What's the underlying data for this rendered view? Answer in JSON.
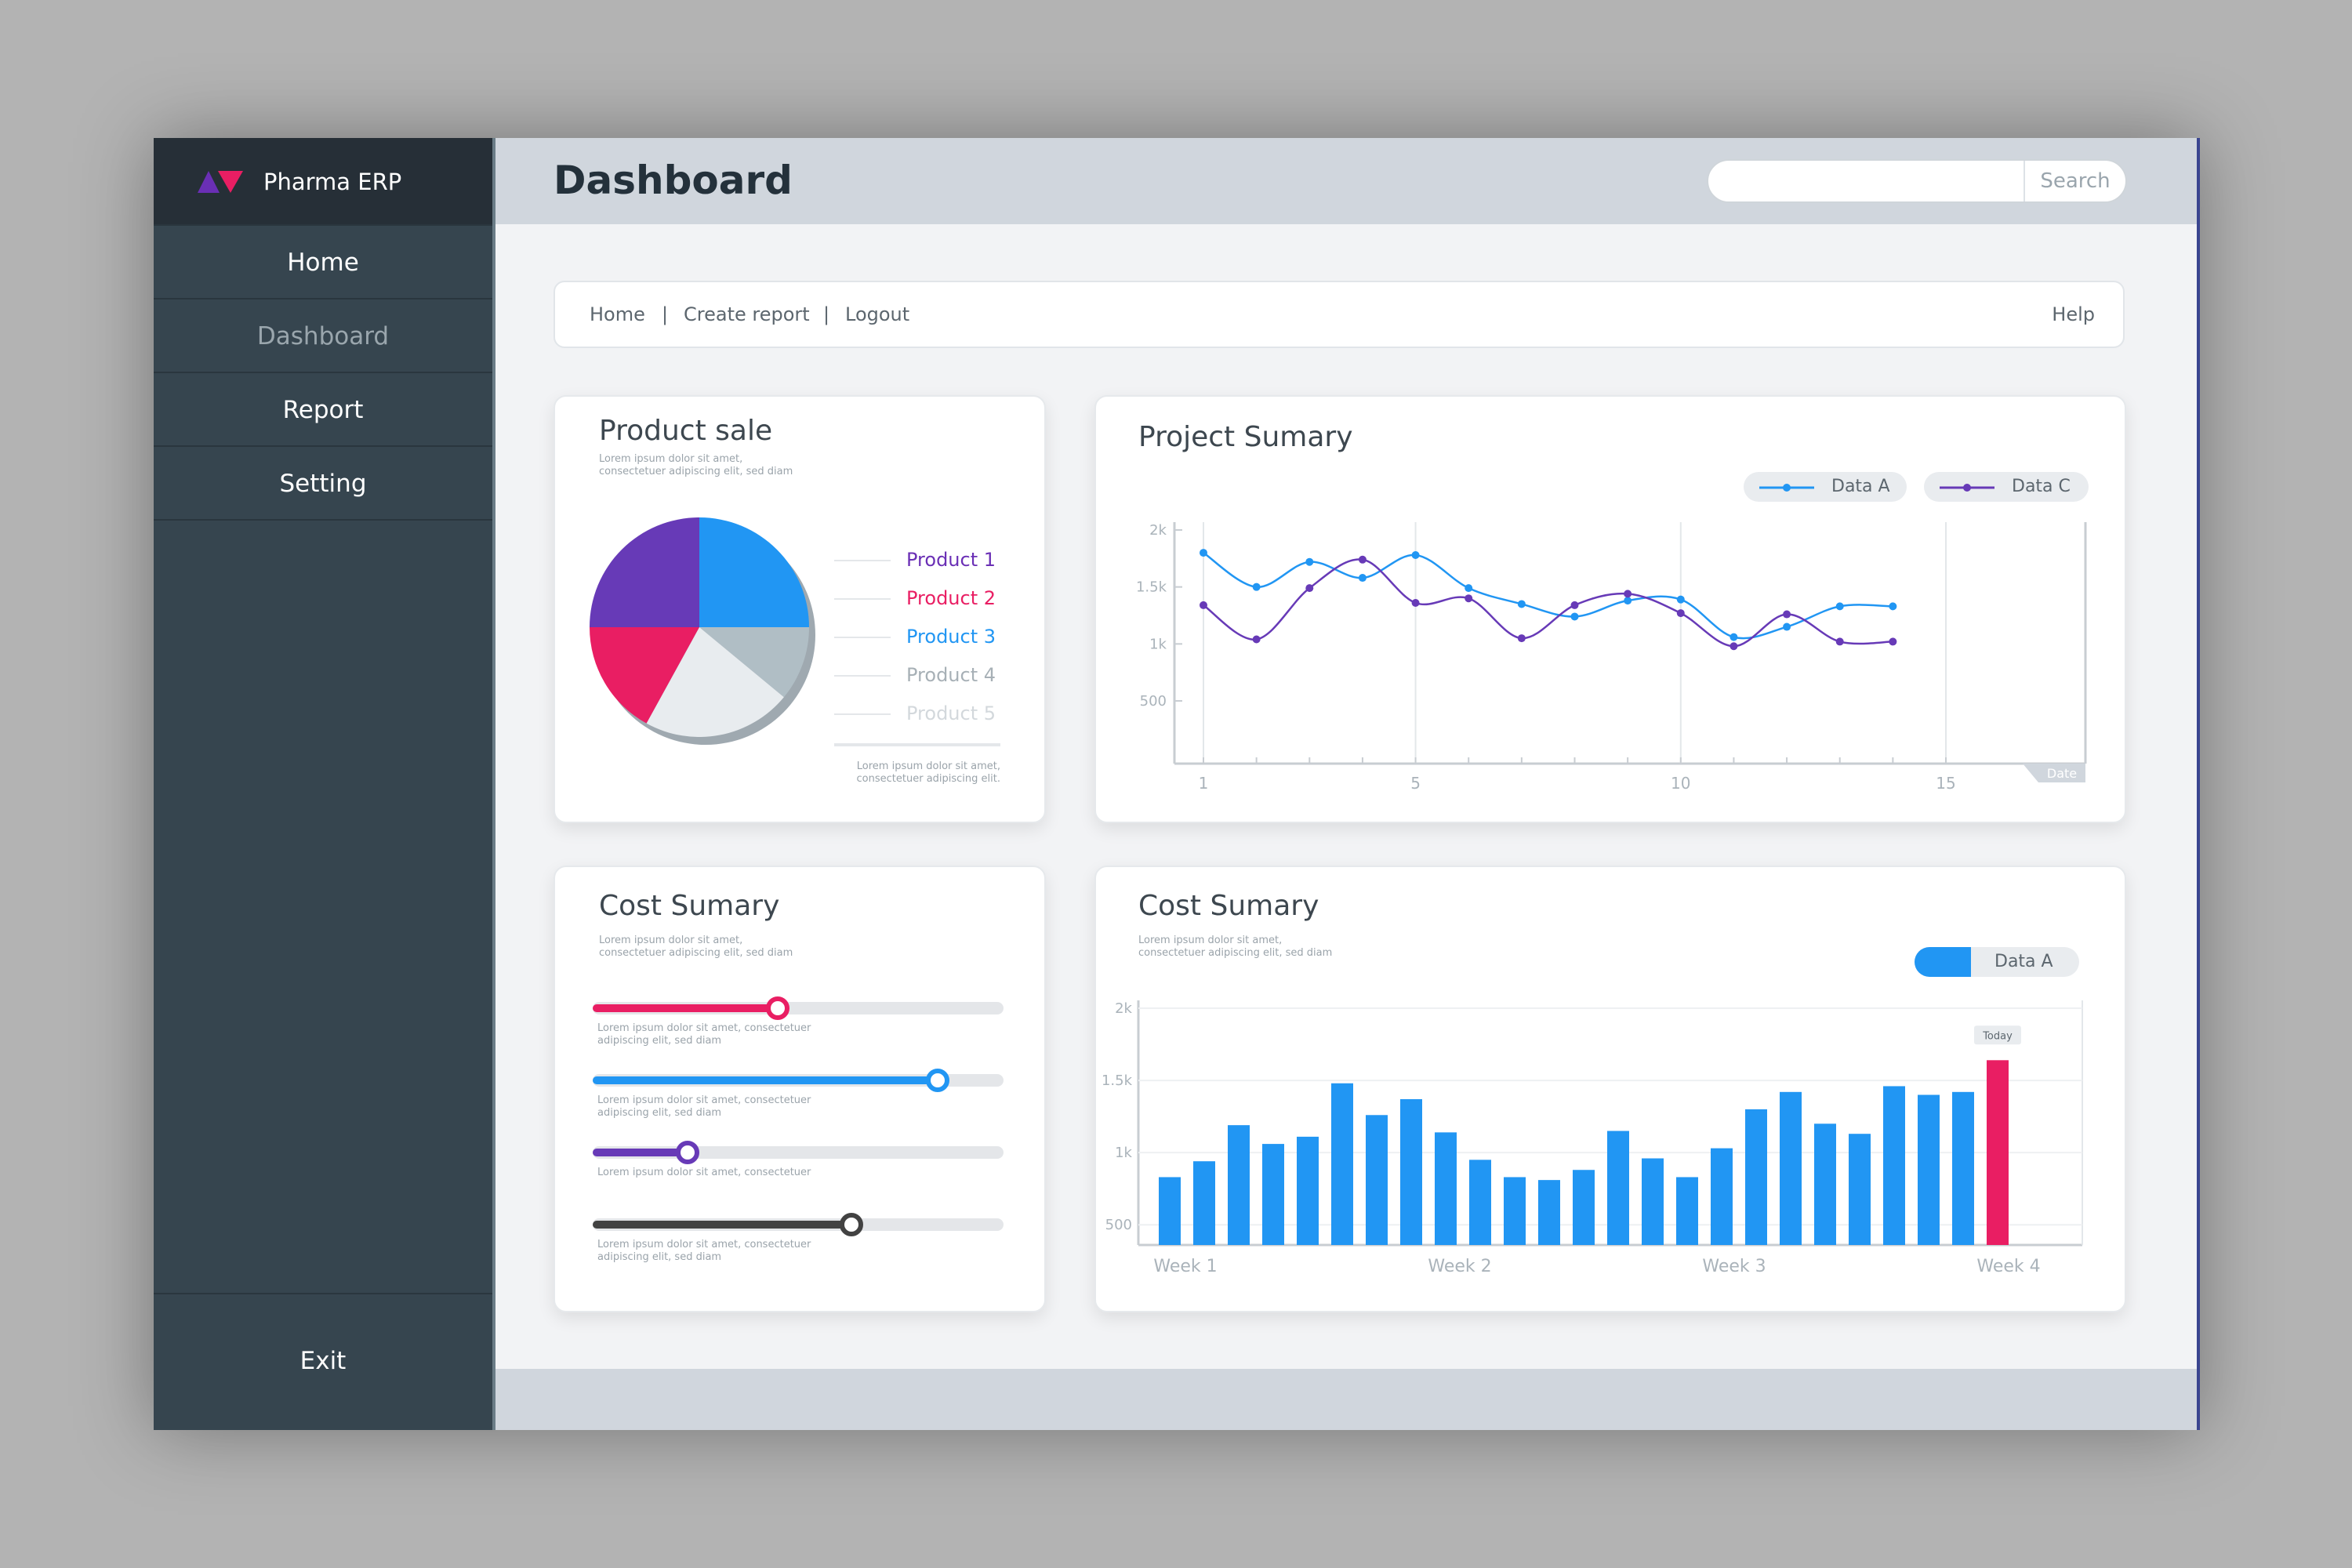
{
  "app": {
    "name": "Pharma ERP"
  },
  "sidebar": {
    "items": [
      {
        "label": "Home"
      },
      {
        "label": "Dashboard"
      },
      {
        "label": "Report"
      },
      {
        "label": "Setting"
      }
    ],
    "exit_label": "Exit",
    "active_index": 1
  },
  "header": {
    "title": "Dashboard",
    "search_button": "Search",
    "search_value": "",
    "search_placeholder": ""
  },
  "breadcrumb": {
    "links": [
      "Home",
      "Create report",
      "Logout"
    ],
    "help": "Help"
  },
  "colors": {
    "blue": "#2196f3",
    "pink": "#e91e63",
    "purple": "#673ab7",
    "dark": "#424242",
    "gray": "#b0bec5",
    "light": "#eceff1"
  },
  "product_sale": {
    "title": "Product sale",
    "subtitle": "Lorem ipsum dolor sit amet, consectetuer adipiscing elit, sed diam",
    "footnote": "Lorem ipsum dolor sit amet, consectetuer adipiscing elit.",
    "legend": [
      {
        "label": "Product 1",
        "color": "#6a2fb5"
      },
      {
        "label": "Product 2",
        "color": "#e91e63"
      },
      {
        "label": "Product 3",
        "color": "#2196f3"
      },
      {
        "label": "Product 4",
        "color": "#a7b0b6"
      },
      {
        "label": "Product 5",
        "color": "#d3d8dc"
      }
    ]
  },
  "project_summary": {
    "title": "Project Sumary",
    "legend": [
      "Data A",
      "Data C"
    ]
  },
  "cost_summary_sliders": {
    "title": "Cost Sumary",
    "subtitle": "Lorem ipsum dolor sit amet, consectetuer adipiscing elit, sed diam",
    "sliders": [
      {
        "value": 0.45,
        "color": "#e91e63",
        "note": "Lorem ipsum dolor sit amet, consectetuer adipiscing elit, sed diam"
      },
      {
        "value": 0.84,
        "color": "#2196f3",
        "note": "Lorem ipsum dolor sit amet, consectetuer adipiscing elit, sed diam"
      },
      {
        "value": 0.23,
        "color": "#673ab7",
        "note": "Lorem ipsum dolor sit amet, consectetuer"
      },
      {
        "value": 0.63,
        "color": "#424242",
        "note": "Lorem ipsum dolor sit amet, consectetuer adipiscing elit, sed diam"
      }
    ]
  },
  "cost_summary_bars": {
    "title": "Cost Sumary",
    "subtitle": "Lorem ipsum dolor sit amet, consectetuer adipiscing elit, sed diam",
    "legend": "Data A",
    "today_label": "Today"
  },
  "chart_data": [
    {
      "type": "pie",
      "title": "Product sale",
      "labels": [
        "Product 3",
        "Product 4",
        "Product 5",
        "Product 2",
        "Product 1"
      ],
      "values": [
        25,
        11,
        22,
        17,
        25
      ],
      "colors": [
        "#2196f3",
        "#b0bec5",
        "#e8ecef",
        "#e91e63",
        "#673ab7"
      ]
    },
    {
      "type": "line",
      "title": "Project Sumary",
      "xlabel": "Date",
      "x_ticks": [
        1,
        5,
        10,
        15
      ],
      "y_ticks": [
        "500",
        "1k",
        "1.5k",
        "2k"
      ],
      "ylim": [
        500,
        2000
      ],
      "xlim": [
        1,
        15
      ],
      "grid": "vertical",
      "legend_position": "top-right",
      "series": [
        {
          "name": "Data A",
          "color": "#2196f3",
          "x": [
            1,
            2,
            3,
            4,
            5,
            6,
            7,
            8,
            9,
            10,
            11,
            12,
            13,
            14
          ],
          "y": [
            1800,
            1500,
            1720,
            1580,
            1780,
            1490,
            1350,
            1240,
            1380,
            1390,
            1060,
            1150,
            1330,
            1330
          ]
        },
        {
          "name": "Data C",
          "color": "#673ab7",
          "x": [
            1,
            2,
            3,
            4,
            5,
            6,
            7,
            8,
            9,
            10,
            11,
            12,
            13,
            14
          ],
          "y": [
            1340,
            1040,
            1490,
            1740,
            1360,
            1400,
            1050,
            1340,
            1440,
            1270,
            980,
            1260,
            1020,
            1020
          ]
        }
      ]
    },
    {
      "type": "bar",
      "title": "Cost Sumary",
      "x_labels": [
        "Week 1",
        "Week 2",
        "Week 3",
        "Week 4"
      ],
      "y_ticks": [
        "500",
        "1k",
        "1.5k",
        "2k"
      ],
      "ylim": [
        360,
        2000
      ],
      "legend_position": "top-right",
      "series": [
        {
          "name": "Data A",
          "color": "#2196f3",
          "values": [
            830,
            940,
            1190,
            1060,
            1110,
            1480,
            1260,
            1370,
            1140,
            950,
            830,
            810,
            880,
            1150,
            960,
            830,
            1030,
            1300,
            1420,
            1200,
            1130,
            1460,
            1400,
            1420,
            1640
          ]
        }
      ],
      "highlight_index": 24,
      "highlight_color": "#e91e63"
    }
  ]
}
